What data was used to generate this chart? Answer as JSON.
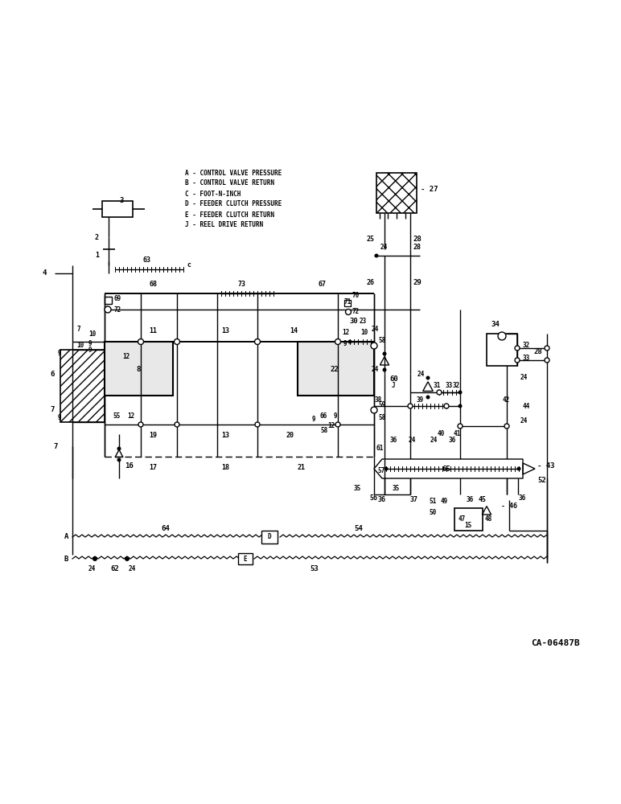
{
  "bg_color": "#ffffff",
  "line_color": "#000000",
  "fig_width": 7.72,
  "fig_height": 10.0,
  "dpi": 100,
  "legend_lines": [
    "A - CONTROL VALVE PRESSURE",
    "B - CONTROL VALVE RETURN",
    "C - FOOT-N-INCH",
    "D - FEEDER CLUTCH PRESSURE",
    "E - FEEDER CLUTCH RETURN",
    "J - REEL DRIVE RETURN"
  ],
  "diagram_ref": "CA-06487B"
}
